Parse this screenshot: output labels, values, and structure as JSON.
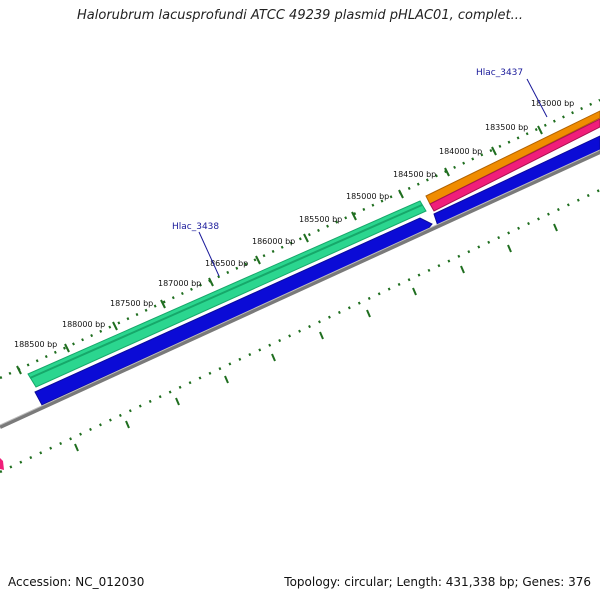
{
  "title": "Halorubrum lacusprofundi ATCC 49239 plasmid pHLAC01, complet...",
  "footer": {
    "accession": "Accession: NC_012030",
    "summary": "Topology: circular; Length: 431,338 bp; Genes: 376"
  },
  "colors": {
    "dots": "#1f6e1f",
    "gene_green": "#2bd68f",
    "gene_green_dark": "#16a86a",
    "gene_blue": "#0b0bd6",
    "gene_orange": "#f08c00",
    "gene_pink": "#f01e7a",
    "backbone": "#7a7a7a",
    "label": "#1a1a9a"
  },
  "tick_labels": [
    "183000 bp",
    "183500 bp",
    "184000 bp",
    "184500 bp",
    "185000 bp",
    "185500 bp",
    "186000 bp",
    "186500 bp",
    "187000 bp",
    "187500 bp",
    "188000 bp",
    "188500 bp"
  ],
  "gene_labels": [
    "Hlac_3437",
    "Hlac_3438"
  ]
}
